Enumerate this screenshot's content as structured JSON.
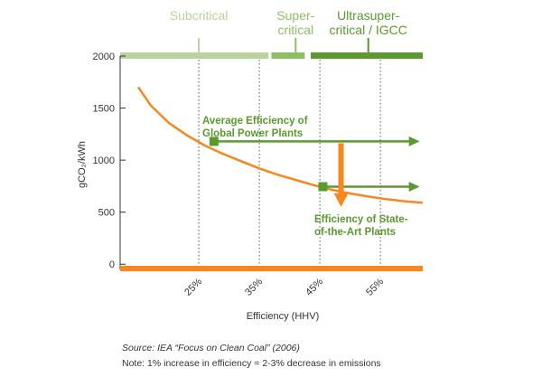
{
  "colors": {
    "orange": "#f7871f",
    "green": "#5a9a2e",
    "light_green": "#b8d49c",
    "mid_green": "#8cbf5e",
    "axis_text": "#333333",
    "grid": "#555555"
  },
  "chart_data": {
    "type": "line",
    "xlabel": "Efficiency (HHV)",
    "ylabel": "gCO₂/kWh",
    "xlim": [
      12,
      62
    ],
    "ylim": [
      -50,
      2000
    ],
    "x_ticks": [
      25,
      35,
      45,
      55
    ],
    "x_tick_labels": [
      "25%",
      "35%",
      "45%",
      "55%"
    ],
    "y_ticks": [
      0,
      500,
      1000,
      1500,
      2000
    ],
    "y_tick_labels": [
      "0",
      "500",
      "1000",
      "1500",
      "2000"
    ],
    "grid": "vertical dotted at x ticks",
    "series": [
      {
        "x": [
          15,
          17,
          20,
          23,
          26,
          29,
          32,
          35,
          38,
          41,
          44,
          47,
          50,
          53,
          56,
          59,
          62
        ],
        "y": [
          1700,
          1530,
          1360,
          1240,
          1140,
          1060,
          990,
          920,
          860,
          810,
          760,
          715,
          680,
          650,
          625,
          605,
          590
        ]
      }
    ],
    "markers": [
      {
        "x": 27.5,
        "y": 1180,
        "label": "Average Efficiency of Global Power Plants",
        "label_line1": "Average Efficiency of",
        "label_line2": "Global Power Plants"
      },
      {
        "x": 45.5,
        "y": 745,
        "label": "Efficiency of State-of-the-Art Plants",
        "label_line1": "Efficiency of State-",
        "label_line2": "of-the-Art Plants"
      }
    ],
    "arrows": [
      {
        "from_x": 27.5,
        "to_x": 61.5,
        "y": 1180
      },
      {
        "from_x": 45.5,
        "to_x": 61.5,
        "y": 745
      }
    ],
    "down_arrow": {
      "x": 48.5,
      "from_y": 1180,
      "to_y": 760
    },
    "bands": [
      {
        "label_line1": "Subcritical",
        "label_line2": "",
        "x_start": 12,
        "x_end": 36.5,
        "tick_x": 25,
        "color_key": "light_green"
      },
      {
        "label_line1": "Super-",
        "label_line2": "critical",
        "x_start": 37,
        "x_end": 42.5,
        "tick_x": 41,
        "color_key": "mid_green"
      },
      {
        "label_line1": "Ultrasuper-",
        "label_line2": "critical / IGCC",
        "x_start": 43.5,
        "x_end": 62,
        "tick_x": 53,
        "color_key": "green"
      }
    ],
    "source_note": "Source: IEA “Focus on Clean Coal” (2006)",
    "footnote": "Note: 1% increase in efficiency = 2-3% decrease in emissions"
  }
}
